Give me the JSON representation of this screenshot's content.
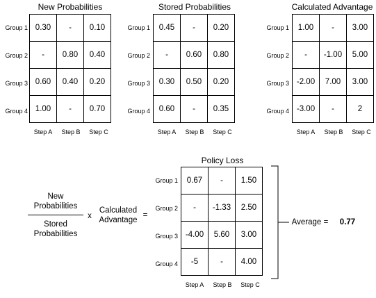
{
  "new_probabilities": {
    "title": "New Probabilities",
    "rows": [
      "Group 1",
      "Group 2",
      "Group 3",
      "Group 4"
    ],
    "cols": [
      "Step A",
      "Step B",
      "Step C"
    ],
    "cells": [
      [
        "0.30",
        "-",
        "0.10"
      ],
      [
        "-",
        "0.80",
        "0.40"
      ],
      [
        "0.60",
        "0.40",
        "0.20"
      ],
      [
        "1.00",
        "-",
        "0.70"
      ]
    ]
  },
  "stored_probabilities": {
    "title": "Stored Probabilities",
    "rows": [
      "Group 1",
      "Group 2",
      "Group 3",
      "Group 4"
    ],
    "cols": [
      "Step A",
      "Step B",
      "Step C"
    ],
    "cells": [
      [
        "0.45",
        "-",
        "0.20"
      ],
      [
        "-",
        "0.60",
        "0.80"
      ],
      [
        "0.30",
        "0.50",
        "0.20"
      ],
      [
        "0.60",
        "-",
        "0.35"
      ]
    ]
  },
  "calculated_advantage": {
    "title": "Calculated Advantage",
    "rows": [
      "Group 1",
      "Group 2",
      "Group 3",
      "Group 4"
    ],
    "cols": [
      "Step A",
      "Step B",
      "Step C"
    ],
    "cells": [
      [
        "1.00",
        "-",
        "3.00"
      ],
      [
        "-",
        "-1.00",
        "5.00"
      ],
      [
        "-2.00",
        "7.00",
        "3.00"
      ],
      [
        "-3.00",
        "-",
        "2"
      ]
    ]
  },
  "policy_loss": {
    "title": "Policy Loss",
    "rows": [
      "Group 1",
      "Group 2",
      "Group 3",
      "Group 4"
    ],
    "cols": [
      "Step A",
      "Step B",
      "Step C"
    ],
    "cells": [
      [
        "0.67",
        "-",
        "1.50"
      ],
      [
        "-",
        "-1.33",
        "2.50"
      ],
      [
        "-4.00",
        "5.60",
        "3.00"
      ],
      [
        "-5",
        "-",
        "4.00"
      ]
    ]
  },
  "formula": {
    "numerator_line1": "New",
    "numerator_line2": "Probabilities",
    "denominator_line1": "Stored",
    "denominator_line2": "Probabilities",
    "times": "x",
    "advantage_line1": "Calculated",
    "advantage_line2": "Advantage",
    "equals": "="
  },
  "average": {
    "label": "Average",
    "equals": "=",
    "value": "0.77"
  }
}
